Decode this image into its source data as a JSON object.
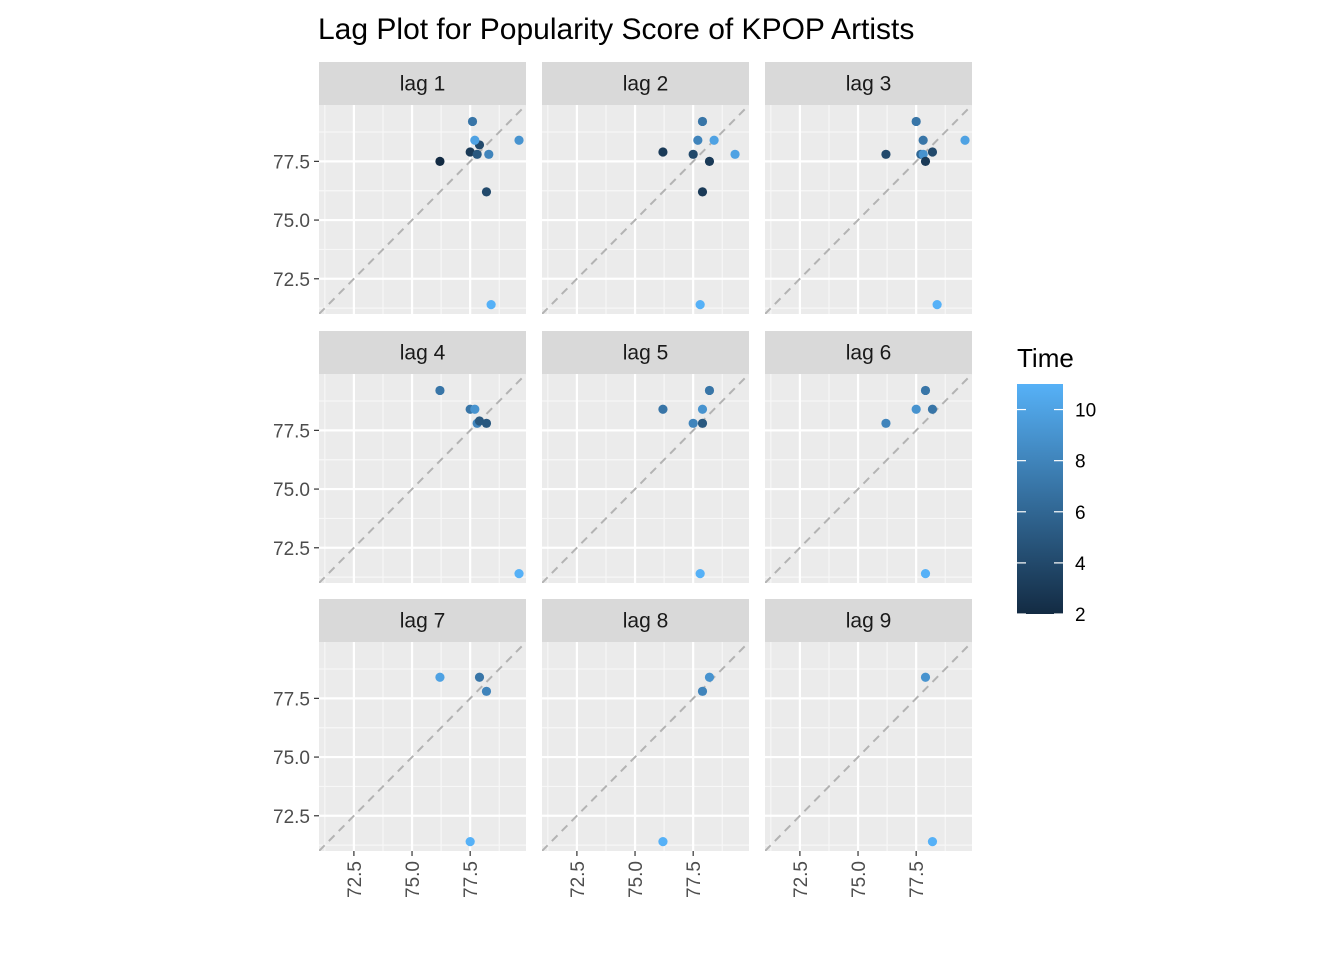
{
  "chart_data": {
    "type": "scatter",
    "title": "Lag Plot for Popularity Score of KPOP Artists",
    "xlabel": "",
    "ylabel": "",
    "xlim": [
      71.0,
      79.9
    ],
    "ylim": [
      71.0,
      79.9
    ],
    "x_ticks": [
      72.5,
      75.0,
      77.5
    ],
    "x_tick_labels": [
      "72.5",
      "75.0",
      "77.5"
    ],
    "y_ticks": [
      72.5,
      75.0,
      77.5
    ],
    "y_tick_labels": [
      "72.5",
      "75.0",
      "77.5"
    ],
    "grid": true,
    "reference_line": "y = x (dashed)",
    "legend": {
      "title": "Time",
      "placement": "right",
      "ticks": [
        2,
        4,
        6,
        8,
        10
      ],
      "tick_labels": [
        "2",
        "4",
        "6",
        "8",
        "10"
      ],
      "range": [
        2,
        11
      ],
      "color_low": "#132B43",
      "color_high": "#56B1F7"
    },
    "panels": [
      {
        "label": "lag 1",
        "points": [
          {
            "x": 76.2,
            "y": 77.5,
            "t": 2
          },
          {
            "x": 77.5,
            "y": 77.9,
            "t": 3
          },
          {
            "x": 77.9,
            "y": 78.2,
            "t": 4
          },
          {
            "x": 78.2,
            "y": 76.2,
            "t": 4
          },
          {
            "x": 77.8,
            "y": 77.8,
            "t": 5
          },
          {
            "x": 77.6,
            "y": 79.2,
            "t": 7
          },
          {
            "x": 78.3,
            "y": 77.8,
            "t": 8
          },
          {
            "x": 77.7,
            "y": 78.4,
            "t": 10
          },
          {
            "x": 79.6,
            "y": 78.4,
            "t": 9
          },
          {
            "x": 78.4,
            "y": 71.4,
            "t": 11
          }
        ]
      },
      {
        "label": "lag 2",
        "points": [
          {
            "x": 76.2,
            "y": 77.9,
            "t": 3
          },
          {
            "x": 77.5,
            "y": 77.8,
            "t": 4
          },
          {
            "x": 78.2,
            "y": 77.5,
            "t": 3
          },
          {
            "x": 77.9,
            "y": 76.2,
            "t": 3
          },
          {
            "x": 77.9,
            "y": 79.2,
            "t": 7
          },
          {
            "x": 77.7,
            "y": 78.4,
            "t": 8
          },
          {
            "x": 78.4,
            "y": 78.4,
            "t": 10
          },
          {
            "x": 79.3,
            "y": 77.8,
            "t": 10
          },
          {
            "x": 77.8,
            "y": 71.4,
            "t": 11
          }
        ]
      },
      {
        "label": "lag 3",
        "points": [
          {
            "x": 76.2,
            "y": 77.8,
            "t": 4
          },
          {
            "x": 77.5,
            "y": 79.2,
            "t": 7
          },
          {
            "x": 77.7,
            "y": 77.8,
            "t": 6
          },
          {
            "x": 77.8,
            "y": 77.8,
            "t": 9
          },
          {
            "x": 77.8,
            "y": 78.4,
            "t": 7
          },
          {
            "x": 77.9,
            "y": 77.5,
            "t": 3
          },
          {
            "x": 78.2,
            "y": 77.9,
            "t": 4
          },
          {
            "x": 79.6,
            "y": 78.4,
            "t": 10
          },
          {
            "x": 78.4,
            "y": 71.4,
            "t": 11
          }
        ]
      },
      {
        "label": "lag 4",
        "points": [
          {
            "x": 76.2,
            "y": 79.2,
            "t": 7
          },
          {
            "x": 77.5,
            "y": 78.4,
            "t": 7
          },
          {
            "x": 77.7,
            "y": 78.4,
            "t": 9
          },
          {
            "x": 77.8,
            "y": 77.8,
            "t": 8
          },
          {
            "x": 77.9,
            "y": 77.9,
            "t": 5
          },
          {
            "x": 78.2,
            "y": 77.8,
            "t": 5
          },
          {
            "x": 79.6,
            "y": 71.4,
            "t": 11
          }
        ]
      },
      {
        "label": "lag 5",
        "points": [
          {
            "x": 76.2,
            "y": 78.4,
            "t": 7
          },
          {
            "x": 77.5,
            "y": 77.8,
            "t": 8
          },
          {
            "x": 77.9,
            "y": 77.8,
            "t": 5
          },
          {
            "x": 77.9,
            "y": 78.4,
            "t": 9
          },
          {
            "x": 78.2,
            "y": 79.2,
            "t": 7
          },
          {
            "x": 77.8,
            "y": 71.4,
            "t": 11
          }
        ]
      },
      {
        "label": "lag 6",
        "points": [
          {
            "x": 76.2,
            "y": 77.8,
            "t": 8
          },
          {
            "x": 77.5,
            "y": 78.4,
            "t": 9
          },
          {
            "x": 77.9,
            "y": 79.2,
            "t": 7
          },
          {
            "x": 78.2,
            "y": 78.4,
            "t": 7
          },
          {
            "x": 77.9,
            "y": 71.4,
            "t": 11
          }
        ]
      },
      {
        "label": "lag 7",
        "points": [
          {
            "x": 76.2,
            "y": 78.4,
            "t": 10
          },
          {
            "x": 77.9,
            "y": 78.4,
            "t": 7
          },
          {
            "x": 78.2,
            "y": 77.8,
            "t": 8
          },
          {
            "x": 77.5,
            "y": 71.4,
            "t": 11
          }
        ]
      },
      {
        "label": "lag 8",
        "points": [
          {
            "x": 77.9,
            "y": 77.8,
            "t": 8
          },
          {
            "x": 78.2,
            "y": 78.4,
            "t": 9
          },
          {
            "x": 76.2,
            "y": 71.4,
            "t": 11
          }
        ]
      },
      {
        "label": "lag 9",
        "points": [
          {
            "x": 77.9,
            "y": 78.4,
            "t": 9
          },
          {
            "x": 78.2,
            "y": 71.4,
            "t": 11
          }
        ]
      }
    ]
  }
}
